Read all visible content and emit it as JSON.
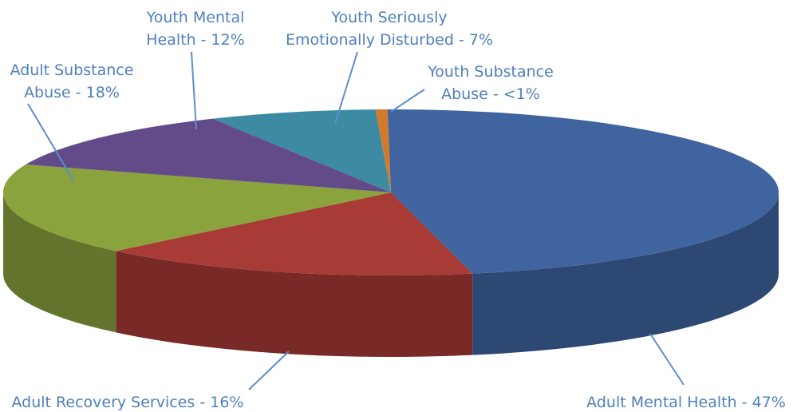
{
  "chart_data": {
    "type": "pie",
    "style": "3d",
    "legend": "none",
    "slices": [
      {
        "label_lines": [
          "Adult Mental Health - 47%"
        ],
        "value": 47,
        "color": "#3f64a0"
      },
      {
        "label_lines": [
          "Adult Recovery Services - 16%"
        ],
        "value": 16,
        "color": "#a83b36"
      },
      {
        "label_lines": [
          "Adult Substance",
          "Abuse - 18%"
        ],
        "value": 18,
        "color": "#8aa33d"
      },
      {
        "label_lines": [
          "Youth Mental",
          "Health - 12%"
        ],
        "value": 12,
        "color": "#634b8a"
      },
      {
        "label_lines": [
          "Youth Seriously",
          "Emotionally Disturbed - 7%"
        ],
        "value": 7,
        "color": "#3c8ba3"
      },
      {
        "label_lines": [
          "Youth Substance",
          "Abuse - <1%"
        ],
        "value": 0.5,
        "color": "#d17a2b"
      }
    ]
  }
}
